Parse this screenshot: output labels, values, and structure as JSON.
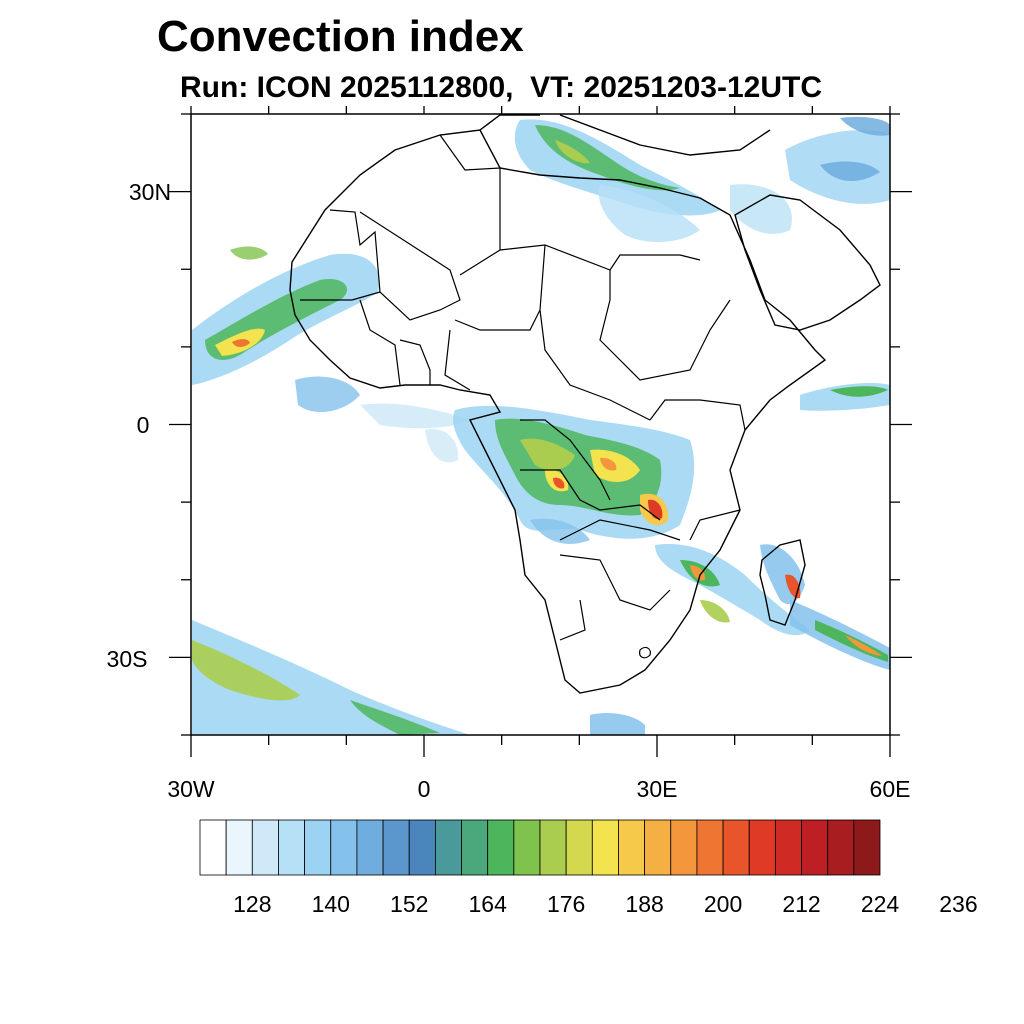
{
  "header": {
    "title": "Convection index",
    "subtitle": "Run: ICON 2025112800,  VT: 20251203-12UTC"
  },
  "map": {
    "projection": "cylindrical equidistant",
    "lon_range": [
      -30,
      60
    ],
    "lat_range": [
      -40,
      40
    ],
    "lat_labels": [
      "30N",
      "0",
      "30S"
    ],
    "lon_labels": [
      "30W",
      "0",
      "30E",
      "60E"
    ]
  },
  "colorbar": {
    "colors": [
      "#ffffff",
      "#eaf5fc",
      "#cfe9f8",
      "#b6e0f6",
      "#9cd3f3",
      "#84c2ec",
      "#6fadde",
      "#5b96cd",
      "#4a86bc",
      "#4a9a9c",
      "#4aa87c",
      "#4db65c",
      "#7fc24e",
      "#aacd4f",
      "#d4d84f",
      "#f2e34f",
      "#f6c94b",
      "#f5b043",
      "#f4963b",
      "#ee7532",
      "#e8552b",
      "#de3a26",
      "#d02a25",
      "#bd1f24",
      "#a81d20",
      "#8e191a"
    ],
    "tick_labels": [
      "128",
      "140",
      "152",
      "164",
      "176",
      "188",
      "200",
      "212",
      "224",
      "236"
    ]
  }
}
